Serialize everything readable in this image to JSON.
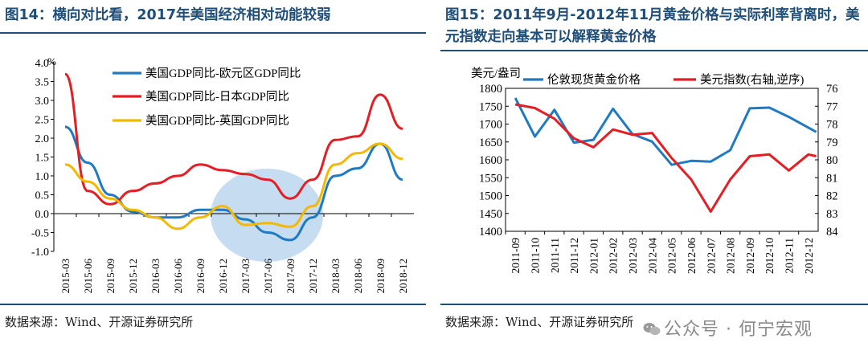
{
  "figures": {
    "left": {
      "title": "图14：横向对比看，2017年美国经济相对动能较弱",
      "source": "数据来源：Wind、开源证券研究所"
    },
    "right": {
      "title": "图15：2011年9月-2012年11月黄金价格与实际利率背离时，美元指数走向基本可以解释黄金价格",
      "source": "数据来源：Wind、开源证券研究所"
    }
  },
  "watermark": "公众号 · 何宁宏观",
  "chart_data": [
    {
      "type": "line",
      "categories": [
        "2015-03",
        "2015-06",
        "2015-09",
        "2015-12",
        "2016-03",
        "2016-06",
        "2016-09",
        "2016-12",
        "2017-03",
        "2017-06",
        "2017-09",
        "2017-12",
        "2018-03",
        "2018-06",
        "2018-09",
        "2018-12"
      ],
      "y_unit": "%",
      "ylim": [
        -1.0,
        4.0
      ],
      "yticks": [
        "4.0",
        "3.5",
        "3.0",
        "2.5",
        "2.0",
        "1.5",
        "1.0",
        "0.5",
        "0.0",
        "-0.5",
        "-1.0"
      ],
      "legend_position": "top-right",
      "series": [
        {
          "name": "美国GDP同比-欧元区GDP同比",
          "color": "#1f7ac2",
          "values": [
            2.3,
            1.35,
            0.5,
            0.05,
            -0.1,
            -0.1,
            0.1,
            0.1,
            -0.15,
            -0.5,
            -0.7,
            -0.1,
            1.0,
            1.2,
            1.85,
            0.9
          ]
        },
        {
          "name": "美国GDP同比-日本GDP同比",
          "color": "#e31e24",
          "values": [
            3.7,
            0.6,
            0.25,
            0.6,
            0.8,
            1.0,
            1.3,
            1.15,
            1.05,
            0.9,
            0.4,
            0.9,
            1.95,
            2.05,
            3.15,
            2.25
          ]
        },
        {
          "name": "美国GDP同比-英国GDP同比",
          "color": "#f5b800",
          "values": [
            1.3,
            0.85,
            0.4,
            0.1,
            -0.1,
            -0.4,
            -0.1,
            0.2,
            -0.3,
            -0.25,
            -0.35,
            0.2,
            1.3,
            1.6,
            1.85,
            1.45
          ]
        }
      ]
    },
    {
      "type": "line",
      "categories": [
        "2011-09",
        "2011-10",
        "2011-11",
        "2011-12",
        "2012-01",
        "2012-02",
        "2012-03",
        "2012-04",
        "2012-05",
        "2012-06",
        "2012-07",
        "2012-08",
        "2012-09",
        "2012-10",
        "2012-11",
        "2012-12"
      ],
      "ylabel_left": "美元/盎司",
      "ylim_left": [
        1400,
        1800
      ],
      "yticks_left": [
        "1800",
        "1750",
        "1700",
        "1650",
        "1600",
        "1550",
        "1500",
        "1450",
        "1400"
      ],
      "ylim_right": [
        76,
        84
      ],
      "right_axis_reversed": true,
      "yticks_right": [
        "76",
        "77",
        "78",
        "79",
        "80",
        "81",
        "82",
        "83",
        "84"
      ],
      "legend_position": "top",
      "series": [
        {
          "name": "伦敦现货黄金价格",
          "axis": "left",
          "color": "#1f7ac2",
          "x": [
            0,
            1,
            2,
            3,
            4,
            5,
            6,
            7,
            8,
            9,
            10,
            11,
            12,
            13,
            14,
            15.4
          ],
          "values": [
            1773,
            1665,
            1740,
            1648,
            1656,
            1743,
            1672,
            1651,
            1586,
            1597,
            1595,
            1627,
            1744,
            1746,
            1720,
            1678
          ]
        },
        {
          "name": "美元指数(右轴,逆序)",
          "axis": "right",
          "color": "#e31e24",
          "x": [
            0,
            1,
            2,
            3,
            4,
            5,
            6,
            7,
            8,
            9,
            10,
            11,
            12,
            13,
            14,
            15,
            15.4
          ],
          "values": [
            76.9,
            77.1,
            77.7,
            78.8,
            79.3,
            78.3,
            78.6,
            78.5,
            79.9,
            81.1,
            82.9,
            81.1,
            79.8,
            79.7,
            80.6,
            79.7,
            79.8
          ]
        }
      ]
    }
  ]
}
